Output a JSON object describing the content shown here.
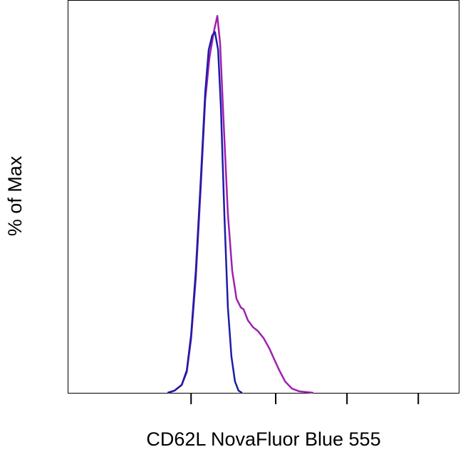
{
  "chart_data": {
    "type": "line",
    "xlabel": "CD62L NovaFluor Blue 555",
    "ylabel": "% of Max",
    "xlim": [
      0,
      100
    ],
    "xticks": [
      31.5,
      53.1,
      71.3,
      89.5
    ],
    "ylim": [
      0,
      104
    ],
    "series": [
      {
        "color": "#a020b0",
        "x": [
          25.5,
          27.3,
          29.1,
          30.4,
          31.5,
          32.7,
          34.0,
          35.1,
          36.2,
          37.3,
          38.2,
          38.9,
          39.8,
          40.9,
          42.0,
          43.1,
          44.2,
          44.9,
          46.0,
          47.3,
          48.5,
          50.0,
          51.5,
          52.7,
          54.0,
          55.5,
          57.3,
          59.1,
          62.7
        ],
        "values": [
          0,
          0.6,
          2.1,
          5.5,
          14.3,
          30.4,
          54.9,
          77.5,
          88.8,
          95.5,
          99.8,
          92.6,
          71.9,
          47.4,
          32.3,
          24.9,
          22.6,
          22.1,
          19.2,
          17.4,
          16.4,
          14.5,
          11.7,
          8.9,
          6.0,
          3.0,
          1.1,
          0.4,
          0
        ]
      },
      {
        "color": "#1c1ca8",
        "x": [
          25.5,
          27.3,
          29.1,
          30.4,
          31.5,
          32.7,
          34.0,
          35.1,
          36.0,
          36.9,
          37.6,
          38.4,
          39.1,
          40.0,
          40.9,
          41.8,
          42.7,
          43.6,
          44.5
        ],
        "values": [
          0,
          0.6,
          2.1,
          5.9,
          15.3,
          32.3,
          56.9,
          79.5,
          90.8,
          94.6,
          95.5,
          90.8,
          75.7,
          47.2,
          22.7,
          9.6,
          3.0,
          0.6,
          0
        ]
      }
    ]
  }
}
